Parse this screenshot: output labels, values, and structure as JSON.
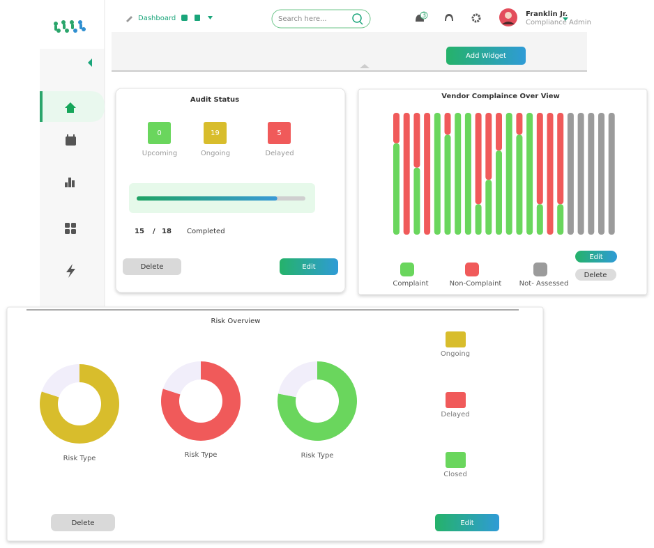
{
  "header": {
    "breadcrumb": "Dashboard",
    "search_placeholder": "Search here...",
    "notifications": 3,
    "user": {
      "name": "Franklin Jr.",
      "role": "Compliance Admin"
    }
  },
  "toolbar": {
    "add_widget": "Add Widget"
  },
  "audit_status": {
    "title": "Audit Status",
    "stats": [
      {
        "label": "Upcoming",
        "value": 0,
        "color": "#6ad65d"
      },
      {
        "label": "Ongoing",
        "value": 19,
        "color": "#d8bd2c"
      },
      {
        "label": "Delayed",
        "value": 5,
        "color": "#f05a5a"
      }
    ],
    "progress": {
      "completed": 15,
      "separator": "/",
      "total": 18,
      "label": "Completed"
    },
    "buttons": {
      "delete": "Delete",
      "edit": "Edit"
    }
  },
  "vendor_compliance_buttons": {
    "edit": "Edit",
    "delete": "Delete"
  },
  "chart_data": [
    {
      "type": "bar",
      "stacked": true,
      "title": "Vendor Complaince Over View",
      "categories": [
        null,
        null,
        null,
        null,
        null,
        null,
        null,
        null,
        null,
        null,
        null,
        null,
        null,
        null,
        null,
        null,
        null,
        null,
        null,
        null,
        null,
        null
      ],
      "series": [
        {
          "name": "Complaint",
          "color": "#6ad65d",
          "values": [
            75,
            0,
            55,
            0,
            100,
            82,
            100,
            100,
            25,
            45,
            69,
            100,
            82,
            100,
            25,
            0,
            25,
            0,
            0,
            0,
            0,
            0
          ]
        },
        {
          "name": "Non-Complaint",
          "color": "#f05a5a",
          "values": [
            25,
            100,
            45,
            100,
            0,
            18,
            0,
            0,
            75,
            55,
            31,
            0,
            18,
            0,
            75,
            100,
            75,
            0,
            0,
            0,
            0,
            0
          ]
        },
        {
          "name": "Not- Assessed",
          "color": "#9b9b9b",
          "values": [
            0,
            0,
            0,
            0,
            0,
            0,
            0,
            0,
            0,
            0,
            0,
            0,
            0,
            0,
            0,
            0,
            0,
            100,
            100,
            100,
            100,
            100
          ]
        }
      ],
      "ylim": [
        0,
        100
      ],
      "grid": false
    },
    {
      "type": "donut",
      "title": "Risk Overview",
      "charts": [
        {
          "label": "Risk Type",
          "values": [
            80,
            20
          ],
          "colors": [
            "#d8bd2c",
            "#f1eefa"
          ]
        },
        {
          "label": "Risk Type",
          "values": [
            80,
            20
          ],
          "colors": [
            "#f05a5a",
            "#f1eefa"
          ]
        },
        {
          "label": "Risk Type",
          "values": [
            78,
            22
          ],
          "colors": [
            "#6ad65d",
            "#f1eefa"
          ]
        }
      ],
      "legend": [
        {
          "name": "Ongoing",
          "color": "#d8bd2c"
        },
        {
          "name": "Delayed",
          "color": "#f05a5a"
        },
        {
          "name": "Closed",
          "color": "#6ad65d"
        }
      ],
      "buttons": {
        "delete": "Delete",
        "edit": "Edit"
      }
    }
  ]
}
